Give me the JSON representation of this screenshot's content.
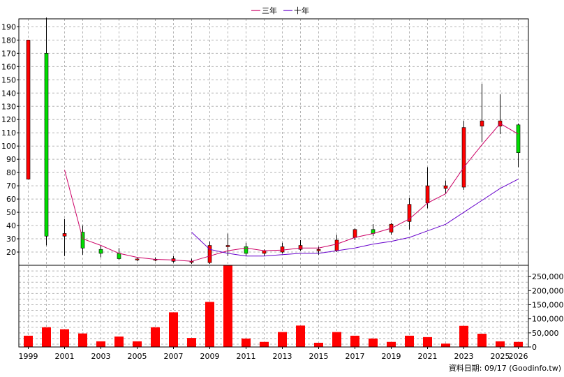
{
  "chart_data": {
    "type": "candlestick",
    "legend": [
      {
        "name": "三年",
        "color": "#cc0066"
      },
      {
        "name": "十年",
        "color": "#6600cc"
      }
    ],
    "price_axis": {
      "ylim": [
        10,
        196
      ],
      "ticks": [
        20,
        30,
        40,
        50,
        60,
        70,
        80,
        90,
        100,
        110,
        120,
        130,
        140,
        150,
        160,
        170,
        180,
        190
      ]
    },
    "volume_axis": {
      "ylim": [
        0,
        290000
      ],
      "ticks": [
        0,
        50000,
        100000,
        150000,
        200000,
        250000
      ],
      "tick_labels": [
        "0",
        "50,000",
        "100,000",
        "150,000",
        "200,000",
        "250,000"
      ]
    },
    "x_axis": {
      "range": [
        1999,
        2026
      ],
      "tick_labels": [
        "1999",
        "2001",
        "2003",
        "2005",
        "2007",
        "2009",
        "2011",
        "2013",
        "2015",
        "2017",
        "2019",
        "2021",
        "2023",
        "2025",
        "2026"
      ]
    },
    "candles": [
      {
        "year": 1999,
        "open": 75,
        "close": 180,
        "high": 180,
        "low": 75
      },
      {
        "year": 2000,
        "open": 170,
        "close": 32,
        "high": 197,
        "low": 25
      },
      {
        "year": 2001,
        "open": 32,
        "close": 34,
        "high": 45,
        "low": 17
      },
      {
        "year": 2002,
        "open": 35,
        "close": 23,
        "high": 40,
        "low": 18
      },
      {
        "year": 2003,
        "open": 22,
        "close": 19,
        "high": 25,
        "low": 16
      },
      {
        "year": 2004,
        "open": 19,
        "close": 15,
        "high": 23,
        "low": 14
      },
      {
        "year": 2005,
        "open": 14,
        "close": 14.8,
        "high": 16,
        "low": 13
      },
      {
        "year": 2006,
        "open": 14,
        "close": 14.6,
        "high": 16,
        "low": 13
      },
      {
        "year": 2007,
        "open": 13,
        "close": 15,
        "high": 17,
        "low": 12
      },
      {
        "year": 2008,
        "open": 12.5,
        "close": 13,
        "high": 15,
        "low": 11
      },
      {
        "year": 2009,
        "open": 12,
        "close": 25,
        "high": 28,
        "low": 11
      },
      {
        "year": 2010,
        "open": 24,
        "close": 25,
        "high": 34,
        "low": 17
      },
      {
        "year": 2011,
        "open": 24,
        "close": 19,
        "high": 27,
        "low": 17
      },
      {
        "year": 2012,
        "open": 19,
        "close": 21,
        "high": 22,
        "low": 17
      },
      {
        "year": 2013,
        "open": 20,
        "close": 24,
        "high": 27,
        "low": 19
      },
      {
        "year": 2014,
        "open": 22,
        "close": 25,
        "high": 29,
        "low": 21
      },
      {
        "year": 2015,
        "open": 21,
        "close": 22,
        "high": 24,
        "low": 18
      },
      {
        "year": 2016,
        "open": 21,
        "close": 29,
        "high": 33,
        "low": 20
      },
      {
        "year": 2017,
        "open": 31,
        "close": 37,
        "high": 38,
        "low": 29
      },
      {
        "year": 2018,
        "open": 37,
        "close": 34,
        "high": 41,
        "low": 32
      },
      {
        "year": 2019,
        "open": 35,
        "close": 41,
        "high": 42,
        "low": 33
      },
      {
        "year": 2020,
        "open": 43,
        "close": 56,
        "high": 61,
        "low": 37
      },
      {
        "year": 2021,
        "open": 57,
        "close": 70,
        "high": 84,
        "low": 53
      },
      {
        "year": 2022,
        "open": 68,
        "close": 70,
        "high": 74,
        "low": 64
      },
      {
        "year": 2023,
        "open": 69,
        "close": 114,
        "high": 119,
        "low": 67
      },
      {
        "year": 2024,
        "open": 115,
        "close": 119,
        "high": 147,
        "low": 103
      },
      {
        "year": 2025,
        "open": 115,
        "close": 119,
        "high": 139,
        "low": 109
      },
      {
        "year": 2026,
        "open": 116,
        "close": 95,
        "high": 117,
        "low": 84
      }
    ],
    "ma_3yr": [
      [
        2001,
        82
      ],
      [
        2002,
        30
      ],
      [
        2003,
        25
      ],
      [
        2004,
        19
      ],
      [
        2005,
        16
      ],
      [
        2006,
        14.5
      ],
      [
        2007,
        14
      ],
      [
        2008,
        13
      ],
      [
        2009,
        17
      ],
      [
        2010,
        21
      ],
      [
        2011,
        23
      ],
      [
        2012,
        21
      ],
      [
        2013,
        21.5
      ],
      [
        2014,
        23
      ],
      [
        2015,
        23
      ],
      [
        2016,
        26
      ],
      [
        2017,
        31
      ],
      [
        2018,
        34
      ],
      [
        2019,
        38
      ],
      [
        2020,
        45
      ],
      [
        2021,
        57
      ],
      [
        2022,
        64
      ],
      [
        2023,
        84
      ],
      [
        2024,
        101
      ],
      [
        2025,
        117
      ],
      [
        2026,
        109
      ]
    ],
    "ma_10yr": [
      [
        2008,
        35
      ],
      [
        2009,
        22
      ],
      [
        2010,
        19
      ],
      [
        2011,
        17
      ],
      [
        2012,
        17
      ],
      [
        2013,
        18
      ],
      [
        2014,
        19
      ],
      [
        2015,
        19
      ],
      [
        2016,
        21
      ],
      [
        2017,
        23
      ],
      [
        2018,
        26
      ],
      [
        2019,
        28
      ],
      [
        2020,
        31
      ],
      [
        2021,
        36
      ],
      [
        2022,
        41
      ],
      [
        2023,
        50
      ],
      [
        2024,
        59
      ],
      [
        2025,
        68
      ],
      [
        2026,
        75
      ]
    ],
    "volume": [
      [
        1999,
        40000
      ],
      [
        2000,
        70000
      ],
      [
        2001,
        63000
      ],
      [
        2002,
        48000
      ],
      [
        2003,
        20000
      ],
      [
        2004,
        37000
      ],
      [
        2005,
        20000
      ],
      [
        2006,
        70000
      ],
      [
        2007,
        123000
      ],
      [
        2008,
        32000
      ],
      [
        2009,
        160000
      ],
      [
        2010,
        290000
      ],
      [
        2011,
        30000
      ],
      [
        2012,
        18000
      ],
      [
        2013,
        53000
      ],
      [
        2014,
        76000
      ],
      [
        2015,
        15000
      ],
      [
        2016,
        53000
      ],
      [
        2017,
        40000
      ],
      [
        2018,
        30000
      ],
      [
        2019,
        18000
      ],
      [
        2020,
        40000
      ],
      [
        2021,
        35000
      ],
      [
        2022,
        12000
      ],
      [
        2023,
        75000
      ],
      [
        2024,
        47000
      ],
      [
        2025,
        20000
      ],
      [
        2026,
        18000
      ]
    ],
    "colors": {
      "up": "#ff0000",
      "down": "#00dd00",
      "volume": "#ff0000",
      "ma_3yr": "#cc0066",
      "ma_10yr": "#6600cc",
      "grid": "#b4b4b4"
    }
  },
  "footer": "資料日期: 09/17  (Goodinfo.tw)"
}
